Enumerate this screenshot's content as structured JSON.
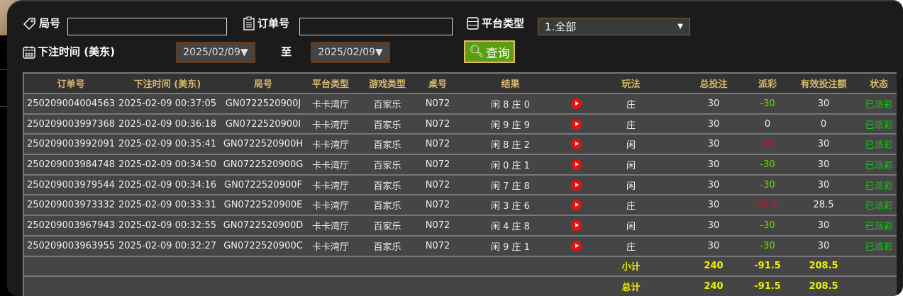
{
  "filters": {
    "round_label": "局号",
    "round_value": "",
    "order_label": "订单号",
    "order_value": "",
    "platform_label": "平台类型",
    "platform_selected": "1.全部",
    "time_label": "下注时间 (美东)",
    "date_from": "2025/02/09▼",
    "to_label": "至",
    "date_to": "2025/02/09▼",
    "query_button": "查询"
  },
  "table": {
    "headers": [
      "订单号",
      "下注时间 (美东)",
      "局号",
      "平台类型",
      "游戏类型",
      "桌号",
      "结果",
      "",
      "玩法",
      "总投注",
      "派彩",
      "有效投注额",
      "状态"
    ],
    "rows": [
      {
        "order": "250209004004563",
        "time": "2025-02-09 00:37:05",
        "round": "GN0722520900J",
        "platform": "卡卡湾厅",
        "game": "百家乐",
        "table": "N072",
        "result": "闲 8 庄 0",
        "play": "庄",
        "bet": "30",
        "payout": "-30",
        "payout_color": "green",
        "valid": "30",
        "status": "已派彩"
      },
      {
        "order": "250209003997368",
        "time": "2025-02-09 00:36:18",
        "round": "GN0722520900I",
        "platform": "卡卡湾厅",
        "game": "百家乐",
        "table": "N072",
        "result": "闲 9 庄 9",
        "play": "庄",
        "bet": "30",
        "payout": "0",
        "payout_color": "white",
        "valid": "0",
        "status": "已派彩"
      },
      {
        "order": "250209003992091",
        "time": "2025-02-09 00:35:41",
        "round": "GN0722520900H",
        "platform": "卡卡湾厅",
        "game": "百家乐",
        "table": "N072",
        "result": "闲 8 庄 2",
        "play": "闲",
        "bet": "30",
        "payout": "30",
        "payout_color": "red",
        "valid": "30",
        "status": "已派彩"
      },
      {
        "order": "250209003984748",
        "time": "2025-02-09 00:34:50",
        "round": "GN0722520900G",
        "platform": "卡卡湾厅",
        "game": "百家乐",
        "table": "N072",
        "result": "闲 0 庄 1",
        "play": "闲",
        "bet": "30",
        "payout": "-30",
        "payout_color": "green",
        "valid": "30",
        "status": "已派彩"
      },
      {
        "order": "250209003979544",
        "time": "2025-02-09 00:34:16",
        "round": "GN0722520900F",
        "platform": "卡卡湾厅",
        "game": "百家乐",
        "table": "N072",
        "result": "闲 7 庄 8",
        "play": "闲",
        "bet": "30",
        "payout": "-30",
        "payout_color": "green",
        "valid": "30",
        "status": "已派彩"
      },
      {
        "order": "250209003973332",
        "time": "2025-02-09 00:33:31",
        "round": "GN0722520900E",
        "platform": "卡卡湾厅",
        "game": "百家乐",
        "table": "N072",
        "result": "闲 3 庄 6",
        "play": "庄",
        "bet": "30",
        "payout": "28.5",
        "payout_color": "red",
        "valid": "28.5",
        "status": "已派彩"
      },
      {
        "order": "250209003967943",
        "time": "2025-02-09 00:32:55",
        "round": "GN0722520900D",
        "platform": "卡卡湾厅",
        "game": "百家乐",
        "table": "N072",
        "result": "闲 4 庄 8",
        "play": "闲",
        "bet": "30",
        "payout": "-30",
        "payout_color": "green",
        "valid": "30",
        "status": "已派彩"
      },
      {
        "order": "250209003963955",
        "time": "2025-02-09 00:32:27",
        "round": "GN0722520900C",
        "platform": "卡卡湾厅",
        "game": "百家乐",
        "table": "N072",
        "result": "闲 9 庄 1",
        "play": "庄",
        "bet": "30",
        "payout": "-30",
        "payout_color": "green",
        "valid": "30",
        "status": "已派彩"
      }
    ],
    "subtotal": {
      "label": "小计",
      "bet": "240",
      "payout": "-91.5",
      "valid": "208.5"
    },
    "total": {
      "label": "总计",
      "bet": "240",
      "payout": "-91.5",
      "valid": "208.5"
    }
  },
  "colors": {
    "header_text": "#d8b96a",
    "green": "#66dd00",
    "red": "#d01030",
    "status": "#11cc11",
    "sum": "#f0f000",
    "query_bg": "#5a9e14"
  }
}
